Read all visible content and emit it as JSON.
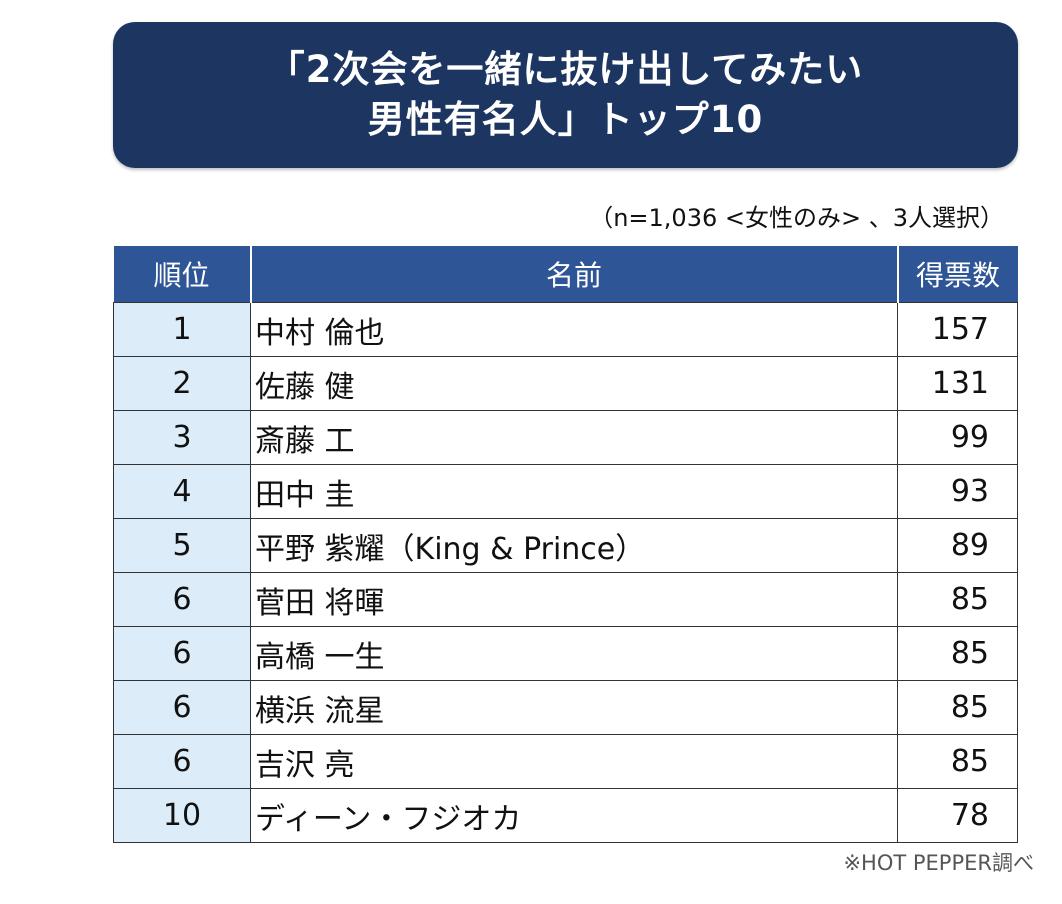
{
  "header": {
    "title_line1": "「2次会を一緒に抜け出してみたい",
    "title_line2": "男性有名人」トップ10"
  },
  "note": "（n=1,036 <女性のみ> 、3人選択）",
  "source": "※HOT PEPPER調べ",
  "colors": {
    "title_bg": "#1c3561",
    "header_bg": "#2e5596",
    "rank_cell_bg": "#dcecf8"
  },
  "chart_data": {
    "type": "table",
    "columns": [
      "順位",
      "名前",
      "得票数"
    ],
    "rows": [
      {
        "rank": "1",
        "name": "中村 倫也",
        "votes": 157
      },
      {
        "rank": "2",
        "name": "佐藤 健",
        "votes": 131
      },
      {
        "rank": "3",
        "name": "斎藤 工",
        "votes": 99
      },
      {
        "rank": "4",
        "name": "田中 圭",
        "votes": 93
      },
      {
        "rank": "5",
        "name": "平野 紫耀（King & Prince）",
        "votes": 89
      },
      {
        "rank": "6",
        "name": "菅田 将暉",
        "votes": 85
      },
      {
        "rank": "6",
        "name": "高橋 一生",
        "votes": 85
      },
      {
        "rank": "6",
        "name": "横浜 流星",
        "votes": 85
      },
      {
        "rank": "6",
        "name": "吉沢 亮",
        "votes": 85
      },
      {
        "rank": "10",
        "name": "ディーン・フジオカ",
        "votes": 78
      }
    ]
  }
}
